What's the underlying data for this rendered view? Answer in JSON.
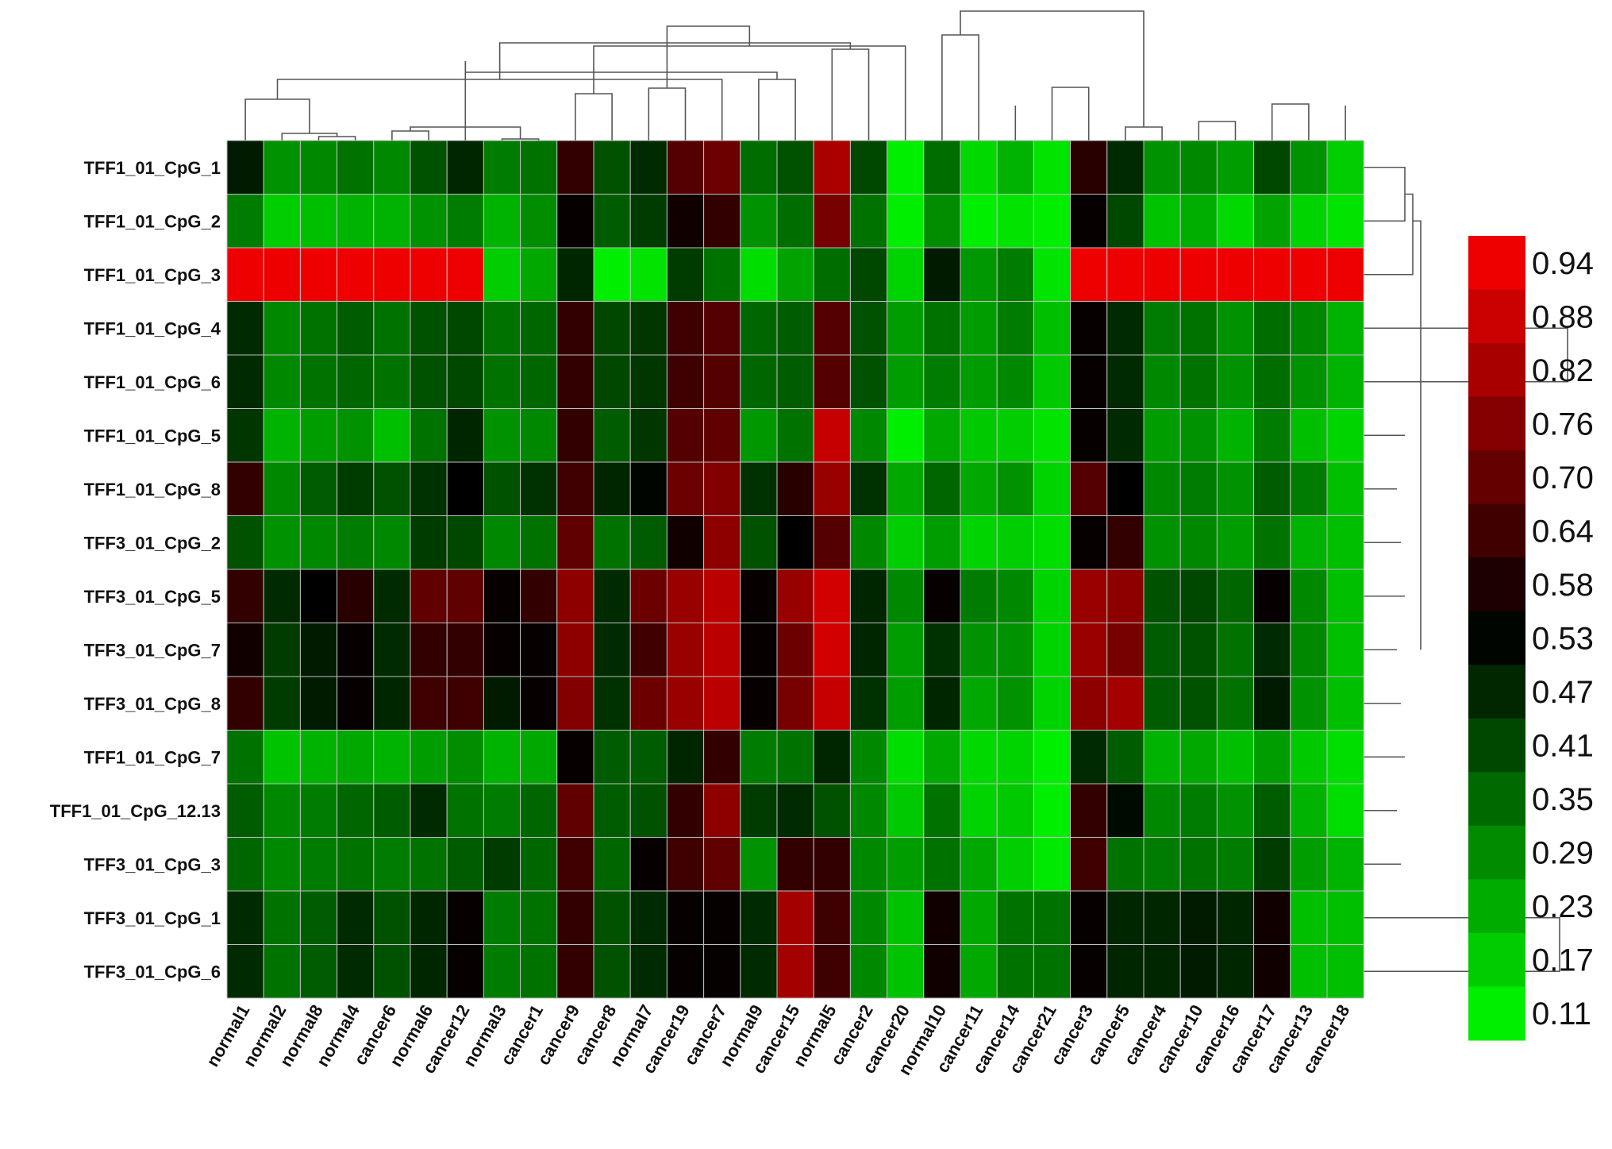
{
  "chart_data": {
    "type": "heatmap",
    "rows": [
      "TFF1_01_CpG_1",
      "TFF1_01_CpG_2",
      "TFF1_01_CpG_3",
      "TFF1_01_CpG_4",
      "TFF1_01_CpG_6",
      "TFF1_01_CpG_5",
      "TFF1_01_CpG_8",
      "TFF3_01_CpG_2",
      "TFF3_01_CpG_5",
      "TFF3_01_CpG_7",
      "TFF3_01_CpG_8",
      "TFF1_01_CpG_7",
      "TFF1_01_CpG_12.13",
      "TFF3_01_CpG_3",
      "TFF3_01_CpG_1",
      "TFF3_01_CpG_6"
    ],
    "columns": [
      "normal1",
      "normal2",
      "normal8",
      "normal4",
      "cancer6",
      "normal6",
      "cancer12",
      "normal3",
      "cancer1",
      "cancer9",
      "cancer8",
      "normal7",
      "cancer19",
      "cancer7",
      "normal9",
      "cancer15",
      "normal5",
      "cancer2",
      "cancer20",
      "normal10",
      "cancer11",
      "cancer14",
      "cancer21",
      "cancer3",
      "cancer5",
      "cancer4",
      "cancer10",
      "cancer16",
      "cancer17",
      "cancer13",
      "cancer18"
    ],
    "values": [
      [
        0.5,
        0.28,
        0.3,
        0.34,
        0.3,
        0.4,
        0.48,
        0.32,
        0.34,
        0.64,
        0.4,
        0.47,
        0.7,
        0.74,
        0.35,
        0.4,
        0.85,
        0.42,
        0.11,
        0.35,
        0.15,
        0.22,
        0.13,
        0.62,
        0.47,
        0.28,
        0.3,
        0.26,
        0.42,
        0.28,
        0.17
      ],
      [
        0.32,
        0.17,
        0.2,
        0.22,
        0.22,
        0.28,
        0.32,
        0.22,
        0.29,
        0.56,
        0.38,
        0.44,
        0.58,
        0.64,
        0.28,
        0.35,
        0.76,
        0.34,
        0.11,
        0.29,
        0.11,
        0.13,
        0.11,
        0.56,
        0.42,
        0.19,
        0.23,
        0.15,
        0.25,
        0.16,
        0.13
      ],
      [
        0.97,
        0.97,
        0.97,
        0.97,
        0.97,
        0.97,
        0.97,
        0.17,
        0.24,
        0.48,
        0.11,
        0.13,
        0.44,
        0.34,
        0.14,
        0.25,
        0.35,
        0.42,
        0.16,
        0.5,
        0.27,
        0.32,
        0.13,
        0.97,
        0.97,
        0.97,
        0.97,
        0.97,
        0.97,
        0.97,
        0.97
      ],
      [
        0.47,
        0.3,
        0.34,
        0.38,
        0.34,
        0.4,
        0.42,
        0.34,
        0.36,
        0.64,
        0.42,
        0.45,
        0.66,
        0.7,
        0.36,
        0.38,
        0.7,
        0.4,
        0.26,
        0.34,
        0.26,
        0.32,
        0.2,
        0.56,
        0.47,
        0.32,
        0.34,
        0.28,
        0.35,
        0.3,
        0.22
      ],
      [
        0.47,
        0.3,
        0.34,
        0.36,
        0.34,
        0.4,
        0.42,
        0.34,
        0.36,
        0.64,
        0.42,
        0.45,
        0.66,
        0.7,
        0.36,
        0.38,
        0.7,
        0.4,
        0.26,
        0.32,
        0.26,
        0.3,
        0.18,
        0.56,
        0.47,
        0.3,
        0.34,
        0.28,
        0.35,
        0.28,
        0.22
      ],
      [
        0.45,
        0.22,
        0.26,
        0.28,
        0.2,
        0.34,
        0.48,
        0.28,
        0.3,
        0.64,
        0.38,
        0.45,
        0.7,
        0.72,
        0.27,
        0.34,
        0.9,
        0.3,
        0.11,
        0.24,
        0.18,
        0.17,
        0.13,
        0.56,
        0.47,
        0.26,
        0.28,
        0.22,
        0.32,
        0.2,
        0.16
      ],
      [
        0.64,
        0.3,
        0.38,
        0.44,
        0.4,
        0.46,
        0.55,
        0.4,
        0.46,
        0.66,
        0.48,
        0.54,
        0.74,
        0.78,
        0.46,
        0.62,
        0.82,
        0.46,
        0.24,
        0.36,
        0.24,
        0.28,
        0.16,
        0.7,
        0.55,
        0.3,
        0.32,
        0.28,
        0.38,
        0.32,
        0.2
      ],
      [
        0.4,
        0.28,
        0.3,
        0.32,
        0.3,
        0.44,
        0.42,
        0.3,
        0.34,
        0.72,
        0.34,
        0.38,
        0.58,
        0.8,
        0.4,
        0.55,
        0.7,
        0.3,
        0.17,
        0.26,
        0.16,
        0.17,
        0.14,
        0.56,
        0.64,
        0.28,
        0.3,
        0.26,
        0.34,
        0.22,
        0.2
      ],
      [
        0.64,
        0.47,
        0.55,
        0.62,
        0.47,
        0.72,
        0.72,
        0.56,
        0.64,
        0.8,
        0.47,
        0.74,
        0.82,
        0.88,
        0.56,
        0.82,
        0.92,
        0.48,
        0.3,
        0.56,
        0.32,
        0.3,
        0.16,
        0.82,
        0.8,
        0.4,
        0.42,
        0.36,
        0.56,
        0.3,
        0.2
      ],
      [
        0.58,
        0.44,
        0.5,
        0.56,
        0.47,
        0.64,
        0.64,
        0.56,
        0.56,
        0.8,
        0.47,
        0.66,
        0.82,
        0.88,
        0.56,
        0.74,
        0.92,
        0.48,
        0.26,
        0.46,
        0.28,
        0.28,
        0.16,
        0.82,
        0.76,
        0.38,
        0.4,
        0.34,
        0.47,
        0.3,
        0.2
      ],
      [
        0.64,
        0.44,
        0.5,
        0.56,
        0.48,
        0.66,
        0.66,
        0.5,
        0.56,
        0.78,
        0.46,
        0.74,
        0.82,
        0.88,
        0.56,
        0.76,
        0.9,
        0.46,
        0.26,
        0.48,
        0.24,
        0.28,
        0.16,
        0.8,
        0.84,
        0.38,
        0.4,
        0.34,
        0.5,
        0.28,
        0.2
      ],
      [
        0.34,
        0.19,
        0.22,
        0.24,
        0.22,
        0.26,
        0.29,
        0.22,
        0.24,
        0.56,
        0.38,
        0.38,
        0.48,
        0.64,
        0.32,
        0.34,
        0.48,
        0.3,
        0.14,
        0.24,
        0.15,
        0.16,
        0.11,
        0.47,
        0.38,
        0.22,
        0.24,
        0.2,
        0.26,
        0.18,
        0.14
      ],
      [
        0.38,
        0.3,
        0.32,
        0.36,
        0.38,
        0.47,
        0.34,
        0.32,
        0.36,
        0.72,
        0.38,
        0.4,
        0.64,
        0.8,
        0.44,
        0.47,
        0.4,
        0.3,
        0.18,
        0.34,
        0.16,
        0.18,
        0.11,
        0.64,
        0.53,
        0.3,
        0.32,
        0.28,
        0.38,
        0.22,
        0.14
      ],
      [
        0.36,
        0.3,
        0.32,
        0.34,
        0.32,
        0.34,
        0.38,
        0.44,
        0.36,
        0.66,
        0.36,
        0.56,
        0.66,
        0.72,
        0.28,
        0.64,
        0.64,
        0.3,
        0.26,
        0.34,
        0.24,
        0.17,
        0.12,
        0.66,
        0.34,
        0.32,
        0.34,
        0.32,
        0.44,
        0.26,
        0.22
      ],
      [
        0.47,
        0.34,
        0.38,
        0.47,
        0.4,
        0.48,
        0.56,
        0.32,
        0.34,
        0.64,
        0.4,
        0.47,
        0.56,
        0.56,
        0.47,
        0.84,
        0.66,
        0.3,
        0.19,
        0.58,
        0.24,
        0.34,
        0.34,
        0.56,
        0.48,
        0.48,
        0.5,
        0.48,
        0.58,
        0.2,
        0.2
      ],
      [
        0.47,
        0.34,
        0.38,
        0.47,
        0.4,
        0.48,
        0.56,
        0.32,
        0.34,
        0.64,
        0.4,
        0.47,
        0.56,
        0.56,
        0.47,
        0.84,
        0.66,
        0.3,
        0.19,
        0.58,
        0.24,
        0.34,
        0.34,
        0.56,
        0.48,
        0.48,
        0.5,
        0.48,
        0.58,
        0.2,
        0.2
      ]
    ],
    "color_scale": {
      "ticks": [
        "0.94",
        "0.88",
        "0.82",
        "0.76",
        "0.70",
        "0.64",
        "0.58",
        "0.53",
        "0.47",
        "0.41",
        "0.35",
        "0.29",
        "0.23",
        "0.17",
        "0.11"
      ],
      "low_color": "#00ff00",
      "mid_color": "#000000",
      "high_color": "#ff0000",
      "min": 0.08,
      "mid": 0.55,
      "max": 1.0
    },
    "legend_placement": "right",
    "column_dendrogram": true,
    "row_dendrogram": true,
    "grid": true
  }
}
